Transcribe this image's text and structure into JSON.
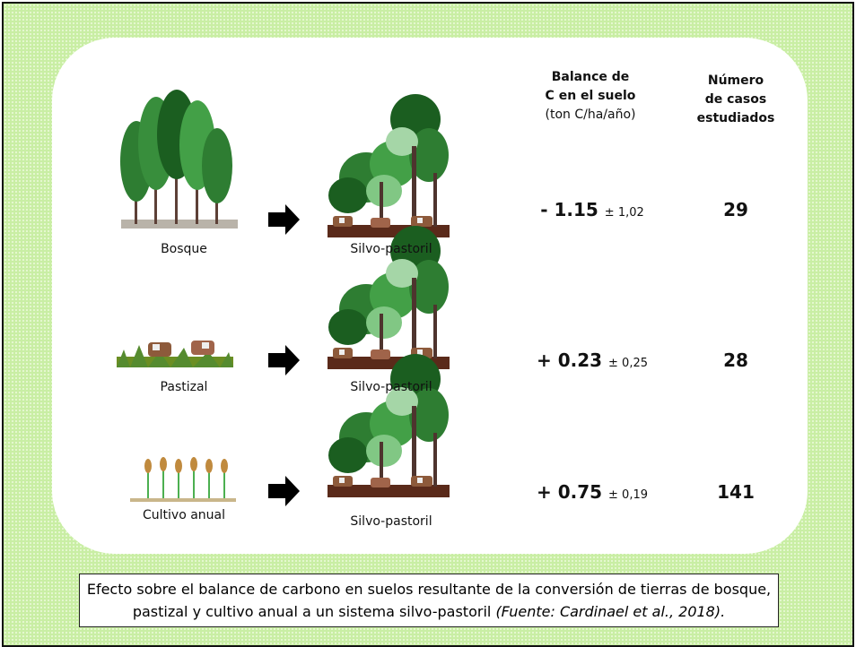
{
  "header": {
    "balance": [
      "Balance de",
      "C en el suelo",
      "(ton C/ha/año)"
    ],
    "cases": [
      "Número",
      "de casos",
      "estudiados"
    ]
  },
  "rows": [
    {
      "from": "Bosque",
      "to": "Silvo-pastoril",
      "balance": "- 1.15",
      "error": "± 1,02",
      "cases": "29"
    },
    {
      "from": "Pastizal",
      "to": "Silvo-pastoril",
      "balance": "+ 0.23",
      "error": "± 0,25",
      "cases": "28"
    },
    {
      "from": "Cultivo anual",
      "to": "Silvo-pastoril",
      "balance": "+ 0.75",
      "error": "± 0,19",
      "cases": "141"
    }
  ],
  "caption": {
    "text": "Efecto sobre el balance de carbono en suelos resultante de la conversión de tierras de bosque, pastizal y cultivo anual a un sistema silvo-pastoril",
    "source": "(Fuente: Cardinael et al., 2018)."
  }
}
